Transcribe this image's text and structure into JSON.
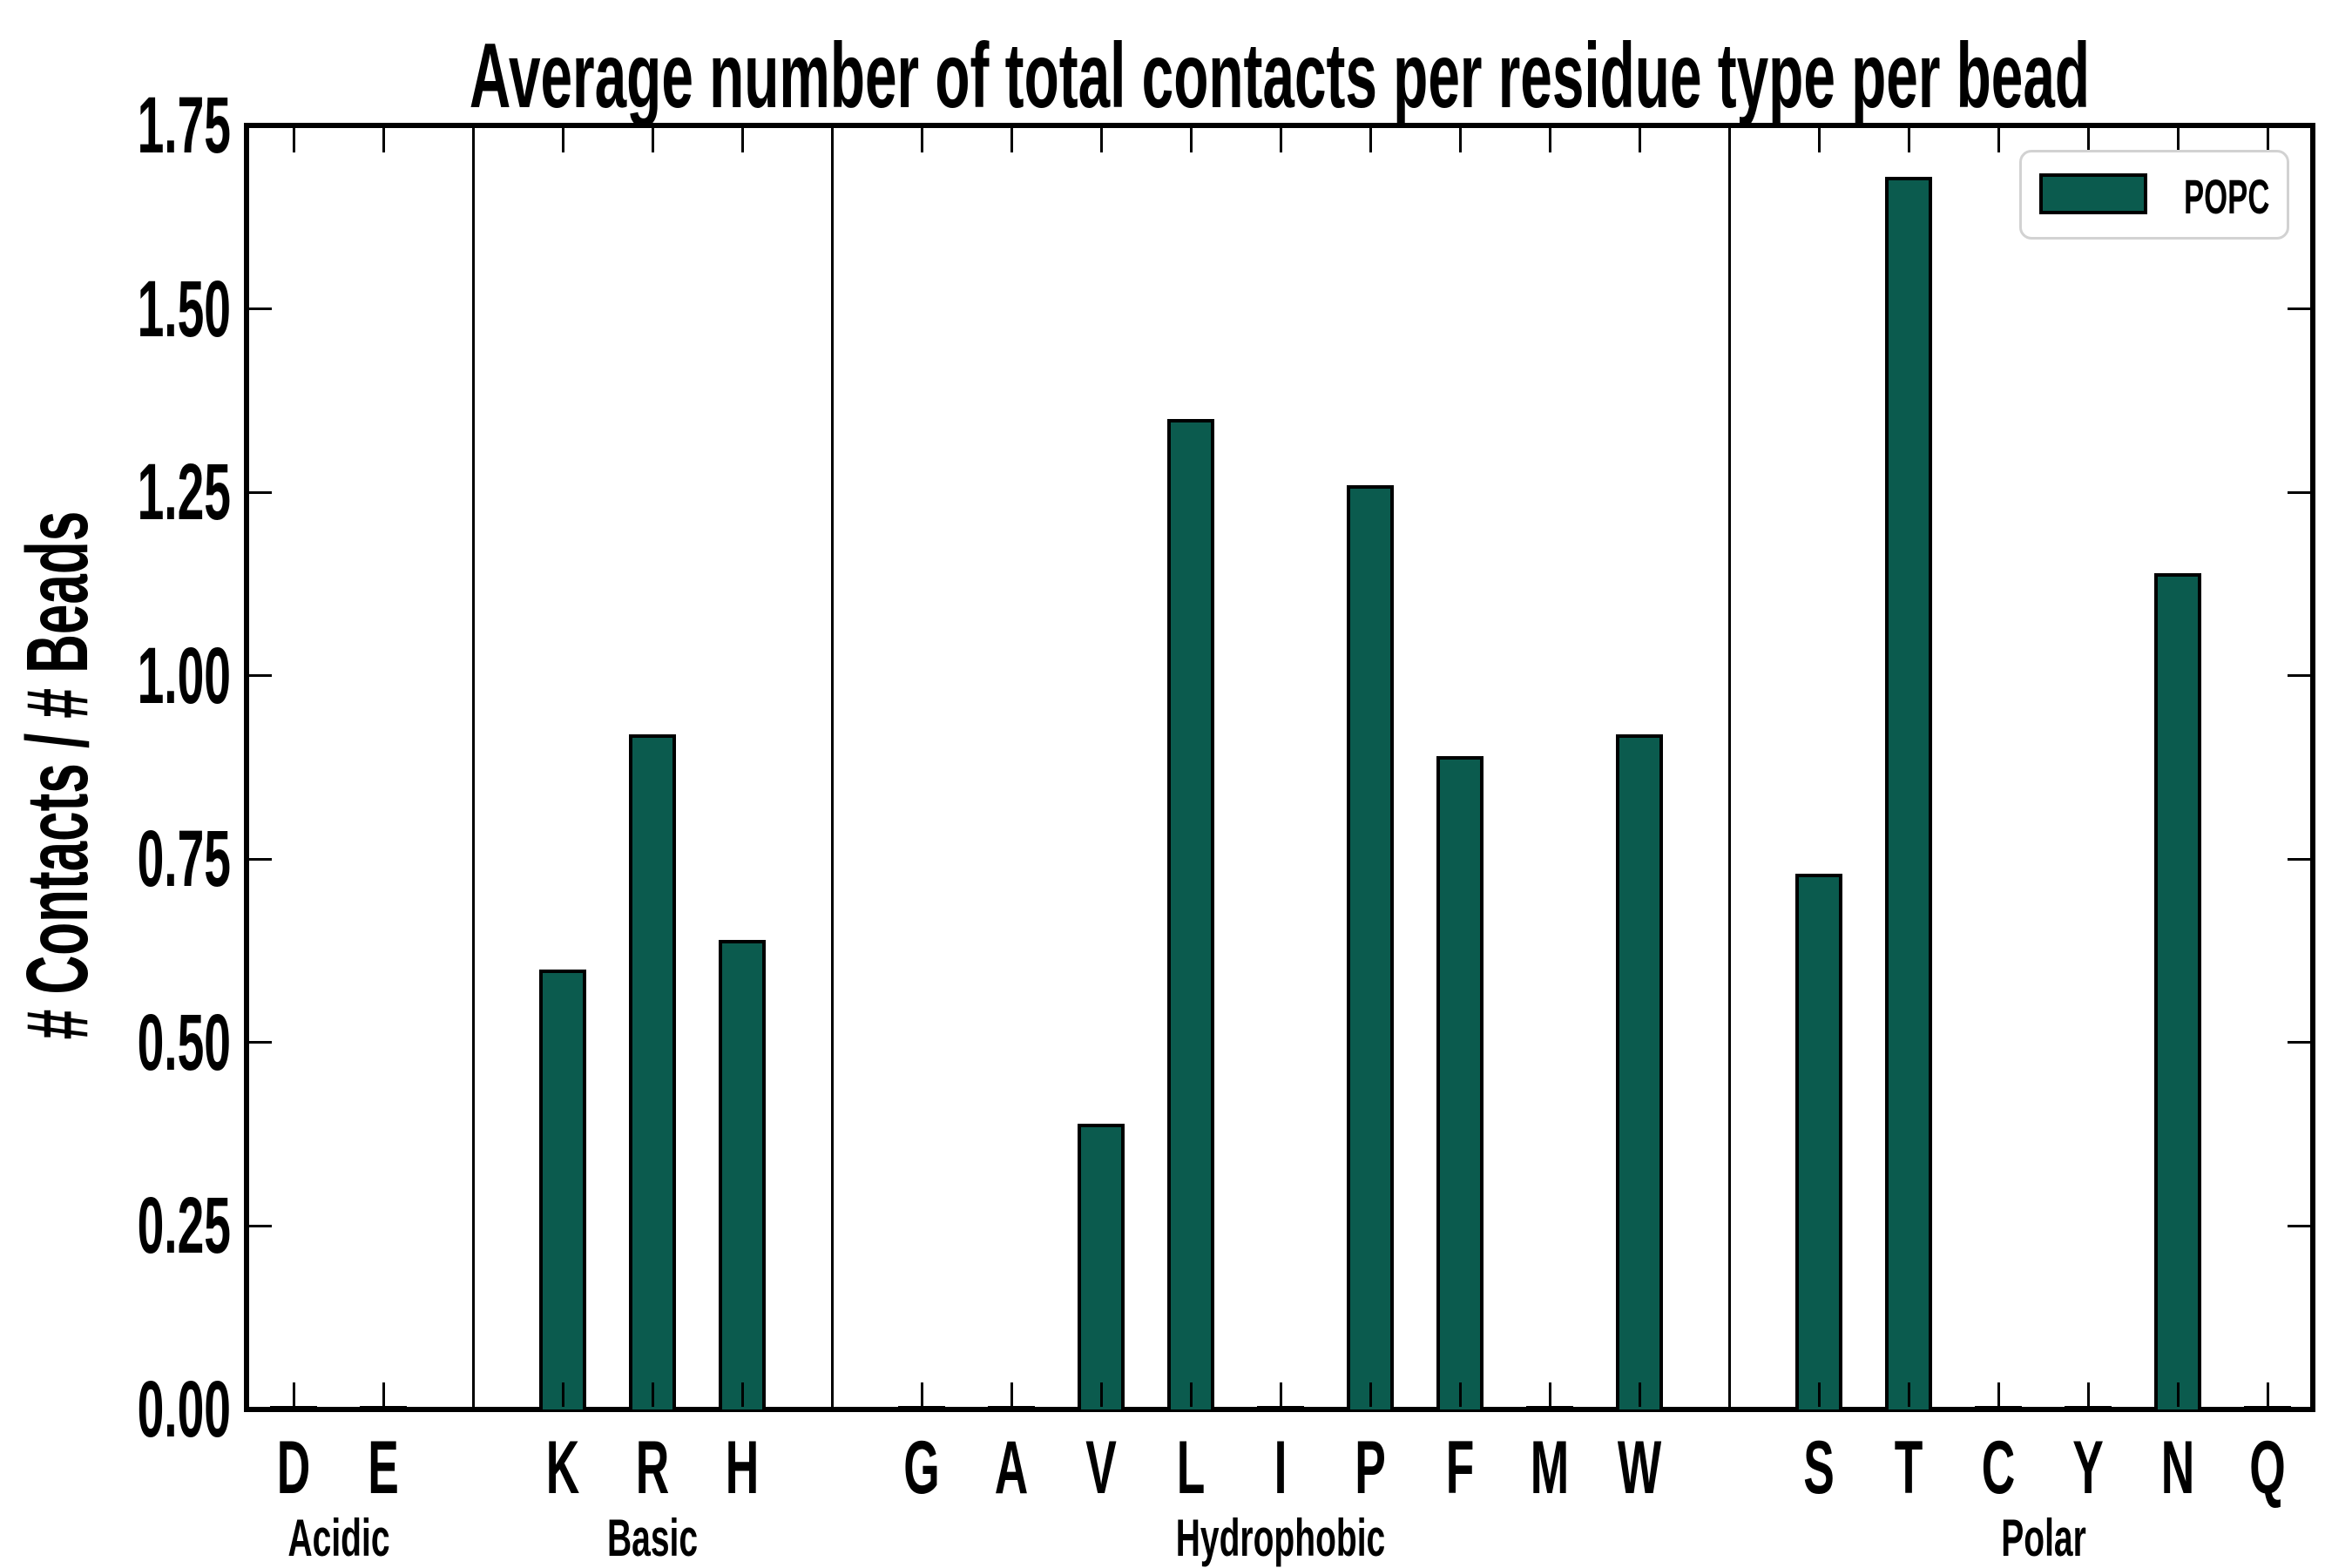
{
  "title": "Average number of total contacts per residue type per bead",
  "y_axis": {
    "label": "# Contacts / # Beads",
    "tick_labels": [
      "0.00",
      "0.25",
      "0.50",
      "0.75",
      "1.00",
      "1.25",
      "1.50",
      "1.75"
    ]
  },
  "legend": {
    "label": "POPC"
  },
  "colors": {
    "bar_fill": "#0b5b4e",
    "bar_edge": "#000000",
    "legend_border": "#d2d2d2",
    "axis": "#000000"
  },
  "chart_data": {
    "type": "bar",
    "title": "Average number of total contacts per residue type per bead",
    "xlabel": "",
    "ylabel": "# Contacts / # Beads",
    "ylim": [
      0,
      1.75
    ],
    "yticks": [
      0.0,
      0.25,
      0.5,
      0.75,
      1.0,
      1.25,
      1.5,
      1.75
    ],
    "grid": false,
    "legend_position": "upper right",
    "series_name": "POPC",
    "groups": [
      {
        "name": "Acidic",
        "categories": [
          "D",
          "E"
        ],
        "values": [
          0.005,
          0.005
        ]
      },
      {
        "name": "Basic",
        "categories": [
          "K",
          "R",
          "H"
        ],
        "values": [
          0.6,
          0.92,
          0.64
        ]
      },
      {
        "name": "Hydrophobic",
        "categories": [
          "G",
          "A",
          "V",
          "L",
          "I",
          "P",
          "F",
          "M",
          "W"
        ],
        "values": [
          0.005,
          0.005,
          0.39,
          1.35,
          0.005,
          1.26,
          0.89,
          0.005,
          0.92
        ]
      },
      {
        "name": "Polar",
        "categories": [
          "S",
          "T",
          "C",
          "Y",
          "N",
          "Q"
        ],
        "values": [
          0.73,
          1.68,
          0.005,
          0.005,
          1.14,
          0.005
        ]
      }
    ]
  }
}
